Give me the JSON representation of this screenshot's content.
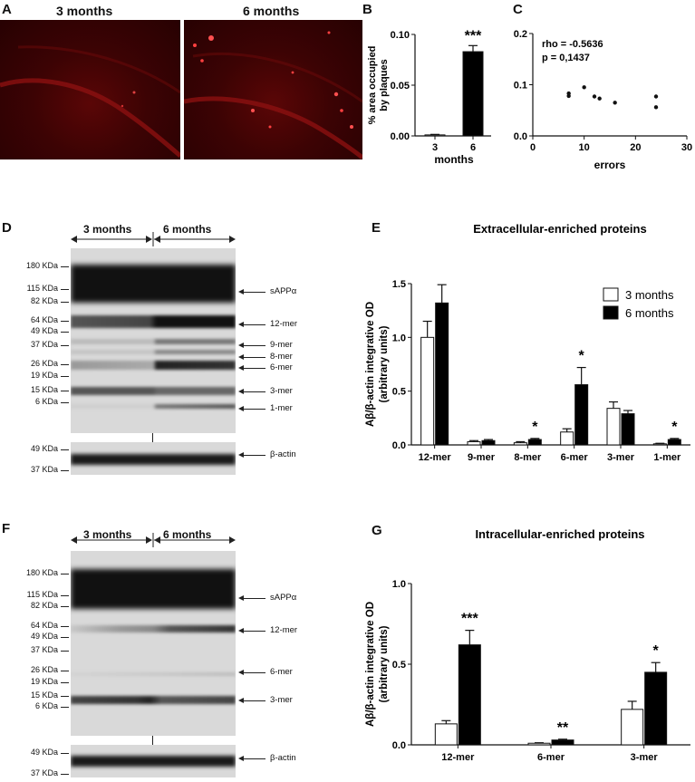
{
  "panel_a": {
    "letter": "A",
    "left_title": "3 months",
    "right_title": "6 months"
  },
  "panel_b": {
    "letter": "B",
    "chart_data": {
      "type": "bar",
      "categories": [
        "3",
        "6"
      ],
      "values": [
        0.001,
        0.083
      ],
      "errors": [
        0.0005,
        0.006
      ],
      "xlabel": "months",
      "ylabel_line1": "% area occupied",
      "ylabel_line2": "by plaques",
      "ylim": [
        0,
        0.1
      ],
      "yticks": [
        "0.00",
        "0.05",
        "0.10"
      ],
      "significance": "***",
      "colors": [
        "#ffffff",
        "#000000"
      ]
    }
  },
  "panel_c": {
    "letter": "C",
    "chart_data": {
      "type": "scatter",
      "x": [
        7,
        7,
        10,
        12,
        13,
        16,
        24,
        24
      ],
      "y": [
        0.078,
        0.083,
        0.095,
        0.077,
        0.073,
        0.065,
        0.077,
        0.056
      ],
      "xlabel": "errors",
      "xlim": [
        0,
        30
      ],
      "ylim": [
        0,
        0.2
      ],
      "xticks": [
        "0",
        "10",
        "20",
        "30"
      ],
      "yticks": [
        "0.0",
        "0.1",
        "0.2"
      ],
      "annotation_rho": "rho = -0.5636",
      "annotation_p": "p = 0,1437"
    }
  },
  "panel_d": {
    "letter": "D",
    "group1": "3 months",
    "group2": "6 months",
    "kda_main": [
      "180 KDa",
      "115 KDa",
      "82 KDa",
      "64 KDa",
      "49 KDa",
      "37 KDa",
      "26 KDa",
      "19 KDa",
      "15 KDa",
      "6 KDa"
    ],
    "mers": [
      "sAPPα",
      "12-mer",
      "9-mer",
      "8-mer",
      "6-mer",
      "3-mer",
      "1-mer"
    ],
    "kda_actin": [
      "49 KDa",
      "37 KDa"
    ],
    "actin_label": "β-actin"
  },
  "panel_e": {
    "letter": "E",
    "chart_data": {
      "type": "bar",
      "title": "Extracellular-enriched proteins",
      "ylabel_line1": "Aβ/β-actin integrative OD",
      "ylabel_line2": "(arbitrary units)",
      "categories": [
        "12-mer",
        "9-mer",
        "8-mer",
        "6-mer",
        "3-mer",
        "1-mer"
      ],
      "series": [
        {
          "name": "3 months",
          "values": [
            1.0,
            0.03,
            0.02,
            0.12,
            0.34,
            0.01
          ],
          "errors": [
            0.15,
            0.01,
            0.01,
            0.03,
            0.06,
            0.005
          ],
          "color": "#ffffff"
        },
        {
          "name": "6 months",
          "values": [
            1.32,
            0.04,
            0.05,
            0.56,
            0.29,
            0.05
          ],
          "errors": [
            0.17,
            0.01,
            0.01,
            0.16,
            0.03,
            0.01
          ],
          "color": "#000000"
        }
      ],
      "significance": [
        "",
        "",
        "*",
        "*",
        "",
        "*"
      ],
      "ylim": [
        0,
        1.5
      ],
      "yticks": [
        "0.0",
        "0.5",
        "1.0",
        "1.5"
      ],
      "legend": "top-right"
    }
  },
  "panel_f": {
    "letter": "F",
    "group1": "3 months",
    "group2": "6 months",
    "kda_main": [
      "180 KDa",
      "115 KDa",
      "82 KDa",
      "64 KDa",
      "49 KDa",
      "37 KDa",
      "26 KDa",
      "19 KDa",
      "15 KDa",
      "6 KDa"
    ],
    "mers": [
      "sAPPα",
      "12-mer",
      "6-mer",
      "3-mer"
    ],
    "kda_actin": [
      "49 KDa",
      "37 KDa"
    ],
    "actin_label": "β-actin"
  },
  "panel_g": {
    "letter": "G",
    "chart_data": {
      "type": "bar",
      "title": "Intracellular-enriched proteins",
      "ylabel_line1": "Aβ/β-actin integrative OD",
      "ylabel_line2": "(arbitrary units)",
      "categories": [
        "12-mer",
        "6-mer",
        "3-mer"
      ],
      "series": [
        {
          "name": "3 months",
          "values": [
            0.13,
            0.01,
            0.22
          ],
          "errors": [
            0.02,
            0.003,
            0.05
          ],
          "color": "#ffffff"
        },
        {
          "name": "6 months",
          "values": [
            0.62,
            0.03,
            0.45
          ],
          "errors": [
            0.09,
            0.005,
            0.06
          ],
          "color": "#000000"
        }
      ],
      "significance": [
        "***",
        "**",
        "*"
      ],
      "ylim": [
        0,
        1.0
      ],
      "yticks": [
        "0.0",
        "0.5",
        "1.0"
      ]
    }
  }
}
